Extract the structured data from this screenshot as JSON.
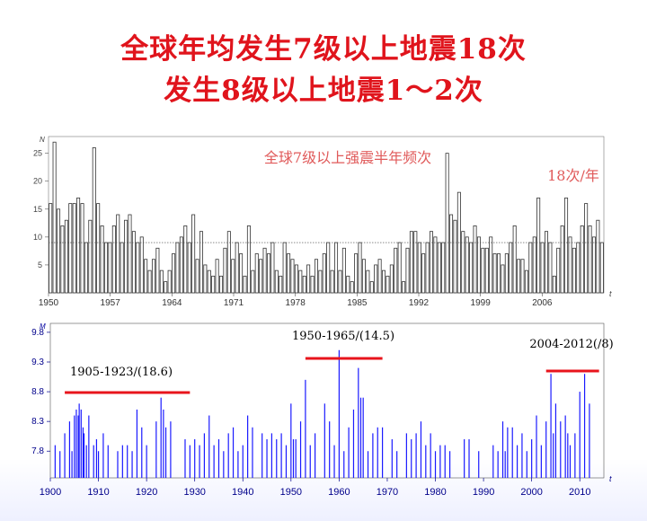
{
  "slide": {
    "title_line1": "全球年均发生7级以上地震18次",
    "title_line2": "发生8级以上地震1～2次"
  },
  "chart_data": [
    {
      "type": "bar",
      "title": "全球7级以上强震半年频次",
      "annotation": "18次/年",
      "ylabel": "N",
      "xlabel": "t",
      "yticks": [
        5,
        10,
        15,
        20,
        25
      ],
      "xticks": [
        "1950",
        "1957",
        "1964",
        "1971",
        "1978",
        "1985",
        "1992",
        "1999",
        "2006"
      ],
      "x_range": [
        1950,
        2013
      ],
      "ylim": [
        0,
        28
      ],
      "reference_line": 9,
      "values": [
        16,
        27,
        15,
        12,
        13,
        16,
        16,
        17,
        16,
        9,
        13,
        26,
        16,
        12,
        9,
        9,
        12,
        14,
        9,
        13,
        14,
        11,
        9,
        10,
        6,
        4,
        6,
        8,
        4,
        2,
        4,
        7,
        9,
        10,
        12,
        9,
        14,
        6,
        11,
        5,
        4,
        3,
        6,
        3,
        8,
        11,
        6,
        9,
        7,
        3,
        12,
        4,
        7,
        6,
        8,
        7,
        9,
        4,
        3,
        9,
        7,
        6,
        5,
        4,
        3,
        5,
        3,
        6,
        4,
        7,
        9,
        4,
        9,
        4,
        8,
        3,
        2,
        7,
        9,
        6,
        4,
        2,
        5,
        6,
        4,
        3,
        5,
        8,
        9,
        2,
        8,
        11,
        11,
        9,
        7,
        9,
        11,
        10,
        9,
        9,
        25,
        14,
        13,
        18,
        11,
        10,
        9,
        12,
        10,
        8,
        8,
        10,
        7,
        7,
        5,
        7,
        9,
        12,
        6,
        6,
        4,
        9,
        10,
        17,
        9,
        11,
        9,
        3,
        8,
        12,
        17,
        10,
        8,
        9,
        12,
        16,
        12,
        10,
        13,
        9
      ]
    },
    {
      "type": "bar",
      "ylabel": "M",
      "xlabel": "t",
      "yticks": [
        7.8,
        8.3,
        8.8,
        9.3,
        9.8
      ],
      "xticks": [
        "1900",
        "1910",
        "1920",
        "1930",
        "1940",
        "1950",
        "1960",
        "1970",
        "1980",
        "1990",
        "2000",
        "2010"
      ],
      "x_range": [
        1900,
        2015
      ],
      "ylim": [
        7.35,
        9.95
      ],
      "periods": [
        {
          "label": "1905-1923/(18.6)",
          "start": 1903,
          "end": 1929
        },
        {
          "label": "1950-1965/(14.5)",
          "start": 1953,
          "end": 1969
        },
        {
          "label": "2004-2012(/8)",
          "start": 2003,
          "end": 2014
        }
      ],
      "events": [
        {
          "year": 1901,
          "m": 7.9
        },
        {
          "year": 1902,
          "m": 7.8
        },
        {
          "year": 1903,
          "m": 8.1
        },
        {
          "year": 1904,
          "m": 8.3
        },
        {
          "year": 1904.5,
          "m": 7.8
        },
        {
          "year": 1905,
          "m": 8.4
        },
        {
          "year": 1905.4,
          "m": 8.5
        },
        {
          "year": 1905.8,
          "m": 8.4
        },
        {
          "year": 1906,
          "m": 8.6
        },
        {
          "year": 1906.4,
          "m": 8.5
        },
        {
          "year": 1906.8,
          "m": 8.2
        },
        {
          "year": 1907,
          "m": 8.1
        },
        {
          "year": 1907.5,
          "m": 7.9
        },
        {
          "year": 1908,
          "m": 8.4
        },
        {
          "year": 1909,
          "m": 7.9
        },
        {
          "year": 1909.6,
          "m": 8.0
        },
        {
          "year": 1910,
          "m": 7.8
        },
        {
          "year": 1911,
          "m": 8.1
        },
        {
          "year": 1912,
          "m": 7.9
        },
        {
          "year": 1914,
          "m": 7.8
        },
        {
          "year": 1915,
          "m": 7.9
        },
        {
          "year": 1916,
          "m": 7.9
        },
        {
          "year": 1917,
          "m": 7.8
        },
        {
          "year": 1918,
          "m": 8.5
        },
        {
          "year": 1919,
          "m": 8.2
        },
        {
          "year": 1920,
          "m": 7.9
        },
        {
          "year": 1922,
          "m": 8.3
        },
        {
          "year": 1923,
          "m": 8.7
        },
        {
          "year": 1923.5,
          "m": 8.5
        },
        {
          "year": 1924,
          "m": 8.2
        },
        {
          "year": 1925,
          "m": 8.3
        },
        {
          "year": 1928,
          "m": 8.0
        },
        {
          "year": 1929,
          "m": 7.9
        },
        {
          "year": 1930,
          "m": 8.0
        },
        {
          "year": 1931,
          "m": 7.9
        },
        {
          "year": 1932,
          "m": 8.1
        },
        {
          "year": 1933,
          "m": 8.4
        },
        {
          "year": 1934,
          "m": 7.9
        },
        {
          "year": 1935,
          "m": 8.0
        },
        {
          "year": 1936,
          "m": 7.8
        },
        {
          "year": 1937,
          "m": 8.1
        },
        {
          "year": 1938,
          "m": 8.2
        },
        {
          "year": 1939,
          "m": 7.8
        },
        {
          "year": 1940,
          "m": 7.9
        },
        {
          "year": 1941,
          "m": 8.4
        },
        {
          "year": 1942,
          "m": 8.2
        },
        {
          "year": 1944,
          "m": 8.1
        },
        {
          "year": 1945,
          "m": 8.0
        },
        {
          "year": 1946,
          "m": 8.1
        },
        {
          "year": 1947,
          "m": 8.0
        },
        {
          "year": 1948,
          "m": 8.1
        },
        {
          "year": 1949,
          "m": 7.9
        },
        {
          "year": 1950,
          "m": 8.6
        },
        {
          "year": 1950.5,
          "m": 8.0
        },
        {
          "year": 1951,
          "m": 8.0
        },
        {
          "year": 1952,
          "m": 8.3
        },
        {
          "year": 1953,
          "m": 9.0
        },
        {
          "year": 1954,
          "m": 7.9
        },
        {
          "year": 1955,
          "m": 8.1
        },
        {
          "year": 1957,
          "m": 8.6
        },
        {
          "year": 1958,
          "m": 8.3
        },
        {
          "year": 1959,
          "m": 7.9
        },
        {
          "year": 1960,
          "m": 9.5
        },
        {
          "year": 1961,
          "m": 7.8
        },
        {
          "year": 1962,
          "m": 8.2
        },
        {
          "year": 1963,
          "m": 8.5
        },
        {
          "year": 1964,
          "m": 9.2
        },
        {
          "year": 1964.5,
          "m": 8.7
        },
        {
          "year": 1965,
          "m": 8.7
        },
        {
          "year": 1966,
          "m": 7.8
        },
        {
          "year": 1967,
          "m": 8.1
        },
        {
          "year": 1968,
          "m": 8.2
        },
        {
          "year": 1969,
          "m": 8.2
        },
        {
          "year": 1971,
          "m": 8.0
        },
        {
          "year": 1972,
          "m": 7.8
        },
        {
          "year": 1974,
          "m": 8.1
        },
        {
          "year": 1975,
          "m": 8.0
        },
        {
          "year": 1976,
          "m": 8.1
        },
        {
          "year": 1977,
          "m": 8.3
        },
        {
          "year": 1978,
          "m": 7.9
        },
        {
          "year": 1979,
          "m": 8.1
        },
        {
          "year": 1980,
          "m": 7.8
        },
        {
          "year": 1981,
          "m": 7.9
        },
        {
          "year": 1982,
          "m": 7.9
        },
        {
          "year": 1983,
          "m": 7.8
        },
        {
          "year": 1986,
          "m": 8.0
        },
        {
          "year": 1987,
          "m": 8.0
        },
        {
          "year": 1989,
          "m": 7.8
        },
        {
          "year": 1992,
          "m": 7.9
        },
        {
          "year": 1993,
          "m": 7.8
        },
        {
          "year": 1994,
          "m": 8.3
        },
        {
          "year": 1994.5,
          "m": 7.8
        },
        {
          "year": 1995,
          "m": 8.2
        },
        {
          "year": 1996,
          "m": 8.2
        },
        {
          "year": 1997,
          "m": 7.9
        },
        {
          "year": 1998,
          "m": 8.1
        },
        {
          "year": 1999,
          "m": 7.8
        },
        {
          "year": 2000,
          "m": 8.0
        },
        {
          "year": 2001,
          "m": 8.4
        },
        {
          "year": 2002,
          "m": 7.9
        },
        {
          "year": 2003,
          "m": 8.3
        },
        {
          "year": 2004,
          "m": 9.1
        },
        {
          "year": 2004.5,
          "m": 8.1
        },
        {
          "year": 2005,
          "m": 8.6
        },
        {
          "year": 2006,
          "m": 8.3
        },
        {
          "year": 2007,
          "m": 8.4
        },
        {
          "year": 2007.5,
          "m": 8.1
        },
        {
          "year": 2008,
          "m": 7.9
        },
        {
          "year": 2009,
          "m": 8.1
        },
        {
          "year": 2010,
          "m": 8.8
        },
        {
          "year": 2011,
          "m": 9.1
        },
        {
          "year": 2012,
          "m": 8.6
        }
      ]
    }
  ]
}
